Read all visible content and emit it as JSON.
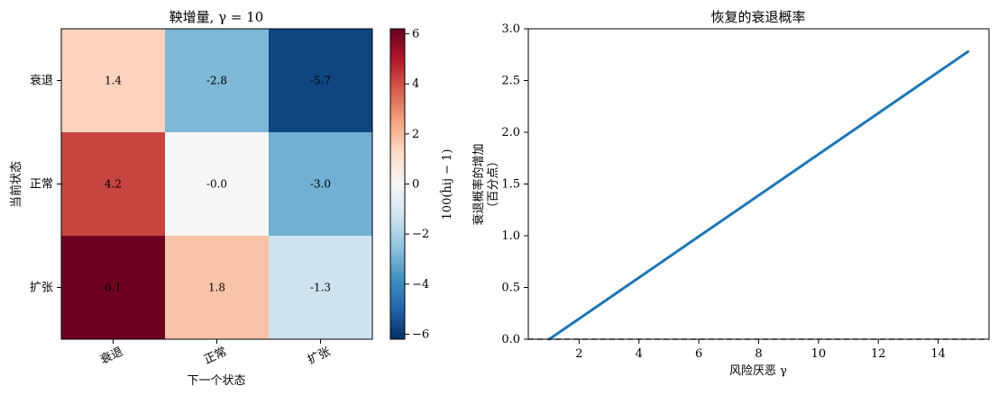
{
  "chart_data": [
    {
      "type": "heatmap",
      "title": "鞅增量, γ = 10",
      "xlabel": "下一个状态",
      "ylabel": "当前状态",
      "x_categories": [
        "衰退",
        "正常",
        "扩张"
      ],
      "y_categories": [
        "衰退",
        "正常",
        "扩张"
      ],
      "values": [
        [
          1.4,
          -2.8,
          -5.7
        ],
        [
          4.2,
          -0.0,
          -3.0
        ],
        [
          6.1,
          1.8,
          -1.3
        ]
      ],
      "cell_labels": [
        [
          "1.4",
          "-2.8",
          "-5.7"
        ],
        [
          "4.2",
          "-0.0",
          "-3.0"
        ],
        [
          "6.1",
          "1.8",
          "-1.3"
        ]
      ],
      "colorbar": {
        "label": "100(ĥij − 1)",
        "range": [
          -6.2,
          6.2
        ],
        "ticks": [
          -6,
          -4,
          -2,
          0,
          2,
          4,
          6
        ],
        "tick_labels": [
          "−6",
          "−4",
          "−2",
          "0",
          "2",
          "4",
          "6"
        ],
        "colormap": "RdBu_r"
      }
    },
    {
      "type": "line",
      "title": "恢复的衰退概率",
      "xlabel": "风险厌恶 γ",
      "ylabel_lines": [
        "衰退概率的增加",
        "（百分点）"
      ],
      "xlim": [
        0.3,
        15.7
      ],
      "ylim": [
        0,
        3.0
      ],
      "xticks": [
        2,
        4,
        6,
        8,
        10,
        12,
        14
      ],
      "xtick_labels": [
        "2",
        "4",
        "6",
        "8",
        "10",
        "12",
        "14"
      ],
      "yticks": [
        0,
        0.5,
        1.0,
        1.5,
        2.0,
        2.5,
        3.0
      ],
      "ytick_labels": [
        "0.0",
        "0.5",
        "1.0",
        "1.5",
        "2.0",
        "2.5",
        "3.0"
      ],
      "series": [
        {
          "x": [
            1,
            15
          ],
          "y": [
            0.0,
            2.78
          ],
          "color": "#1f77b4"
        }
      ],
      "reference_line": {
        "y": 0,
        "style": "dashed",
        "color": "#555555"
      }
    }
  ]
}
